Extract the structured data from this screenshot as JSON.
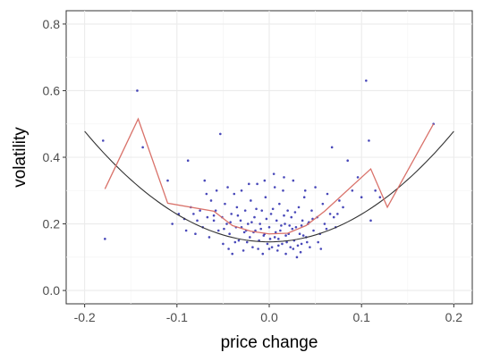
{
  "chart_data": {
    "type": "scatter",
    "xlabel": "price change",
    "ylabel": "volatility",
    "xlim": [
      -0.22,
      0.22
    ],
    "ylim": [
      -0.04,
      0.84
    ],
    "x_ticks": [
      -0.2,
      -0.1,
      0.0,
      0.1,
      0.2
    ],
    "x_tick_labels": [
      "-0.2",
      "-0.1",
      "0.0",
      "0.1",
      "0.2"
    ],
    "y_ticks": [
      0.0,
      0.2,
      0.4,
      0.6,
      0.8
    ],
    "y_tick_labels": [
      "0.0",
      "0.2",
      "0.4",
      "0.6",
      "0.8"
    ],
    "grid": true,
    "colors": {
      "points": "#1a1aa8",
      "empirical_line": "#d9726a",
      "fit_curve": "#333333"
    },
    "series": [
      {
        "kind": "scatter",
        "points": [
          [
            -0.18,
            0.45
          ],
          [
            -0.178,
            0.155
          ],
          [
            -0.143,
            0.6
          ],
          [
            -0.137,
            0.43
          ],
          [
            -0.11,
            0.33
          ],
          [
            -0.105,
            0.2
          ],
          [
            -0.098,
            0.23
          ],
          [
            -0.092,
            0.215
          ],
          [
            -0.09,
            0.18
          ],
          [
            -0.088,
            0.39
          ],
          [
            -0.085,
            0.25
          ],
          [
            -0.082,
            0.23
          ],
          [
            -0.078,
            0.21
          ],
          [
            -0.075,
            0.24
          ],
          [
            -0.072,
            0.19
          ],
          [
            -0.07,
            0.33
          ],
          [
            -0.068,
            0.29
          ],
          [
            -0.065,
            0.16
          ],
          [
            -0.063,
            0.27
          ],
          [
            -0.06,
            0.21
          ],
          [
            -0.058,
            0.24
          ],
          [
            -0.055,
            0.18
          ],
          [
            -0.053,
            0.47
          ],
          [
            -0.051,
            0.22
          ],
          [
            -0.05,
            0.14
          ],
          [
            -0.048,
            0.26
          ],
          [
            -0.046,
            0.2
          ],
          [
            -0.045,
            0.31
          ],
          [
            -0.043,
            0.17
          ],
          [
            -0.041,
            0.23
          ],
          [
            -0.04,
            0.11
          ],
          [
            -0.038,
            0.29
          ],
          [
            -0.036,
            0.19
          ],
          [
            -0.035,
            0.25
          ],
          [
            -0.033,
            0.15
          ],
          [
            -0.031,
            0.21
          ],
          [
            -0.03,
            0.3
          ],
          [
            -0.028,
            0.12
          ],
          [
            -0.026,
            0.24
          ],
          [
            -0.025,
            0.18
          ],
          [
            -0.023,
            0.2
          ],
          [
            -0.021,
            0.16
          ],
          [
            -0.02,
            0.27
          ],
          [
            -0.018,
            0.13
          ],
          [
            -0.016,
            0.22
          ],
          [
            -0.015,
            0.18
          ],
          [
            -0.013,
            0.32
          ],
          [
            -0.011,
            0.15
          ],
          [
            -0.01,
            0.2
          ],
          [
            -0.008,
            0.24
          ],
          [
            -0.007,
            0.11
          ],
          [
            -0.005,
            0.17
          ],
          [
            -0.004,
            0.28
          ],
          [
            -0.002,
            0.14
          ],
          [
            0.0,
            0.19
          ],
          [
            0.002,
            0.23
          ],
          [
            0.003,
            0.13
          ],
          [
            0.005,
            0.35
          ],
          [
            0.006,
            0.16
          ],
          [
            0.008,
            0.21
          ],
          [
            0.009,
            0.12
          ],
          [
            0.011,
            0.26
          ],
          [
            0.012,
            0.18
          ],
          [
            0.014,
            0.14
          ],
          [
            0.015,
            0.3
          ],
          [
            0.017,
            0.2
          ],
          [
            0.018,
            0.11
          ],
          [
            0.02,
            0.24
          ],
          [
            0.021,
            0.17
          ],
          [
            0.023,
            0.13
          ],
          [
            0.024,
            0.22
          ],
          [
            0.026,
            0.33
          ],
          [
            0.027,
            0.15
          ],
          [
            0.029,
            0.19
          ],
          [
            0.03,
            0.1
          ],
          [
            0.032,
            0.25
          ],
          [
            0.033,
            0.17
          ],
          [
            0.035,
            0.14
          ],
          [
            0.036,
            0.21
          ],
          [
            0.038,
            0.28
          ],
          [
            0.04,
            0.16
          ],
          [
            0.042,
            0.2
          ],
          [
            0.044,
            0.13
          ],
          [
            0.046,
            0.24
          ],
          [
            0.048,
            0.18
          ],
          [
            0.05,
            0.31
          ],
          [
            0.052,
            0.22
          ],
          [
            0.055,
            0.17
          ],
          [
            0.058,
            0.26
          ],
          [
            0.06,
            0.2
          ],
          [
            0.063,
            0.29
          ],
          [
            0.066,
            0.23
          ],
          [
            0.068,
            0.43
          ],
          [
            0.072,
            0.19
          ],
          [
            0.076,
            0.27
          ],
          [
            0.08,
            0.25
          ],
          [
            0.085,
            0.39
          ],
          [
            0.09,
            0.3
          ],
          [
            0.096,
            0.34
          ],
          [
            0.1,
            0.28
          ],
          [
            0.105,
            0.63
          ],
          [
            0.108,
            0.45
          ],
          [
            0.11,
            0.21
          ],
          [
            0.115,
            0.3
          ],
          [
            0.12,
            0.28
          ],
          [
            0.178,
            0.5
          ],
          [
            -0.06,
            0.225
          ],
          [
            -0.042,
            0.205
          ],
          [
            -0.037,
            0.145
          ],
          [
            -0.027,
            0.175
          ],
          [
            -0.019,
            0.205
          ],
          [
            -0.012,
            0.125
          ],
          [
            -0.003,
            0.215
          ],
          [
            0.001,
            0.155
          ],
          [
            0.007,
            0.175
          ],
          [
            0.013,
            0.195
          ],
          [
            0.019,
            0.145
          ],
          [
            0.025,
            0.185
          ],
          [
            0.031,
            0.135
          ],
          [
            0.037,
            0.165
          ],
          [
            0.043,
            0.205
          ],
          [
            -0.049,
            0.185
          ],
          [
            -0.034,
            0.225
          ],
          [
            -0.024,
            0.145
          ],
          [
            -0.014,
            0.245
          ],
          [
            -0.006,
            0.165
          ],
          [
            0.004,
            0.245
          ],
          [
            0.01,
            0.135
          ],
          [
            0.016,
            0.225
          ],
          [
            0.022,
            0.195
          ],
          [
            0.028,
            0.235
          ],
          [
            0.034,
            0.115
          ],
          [
            0.041,
            0.145
          ],
          [
            0.047,
            0.215
          ],
          [
            0.053,
            0.145
          ],
          [
            0.062,
            0.185
          ],
          [
            -0.03,
            0.19
          ],
          [
            -0.017,
            0.175
          ],
          [
            -0.009,
            0.185
          ],
          [
            0.0,
            0.125
          ],
          [
            0.01,
            0.155
          ],
          [
            0.018,
            0.165
          ],
          [
            0.026,
            0.125
          ],
          [
            0.035,
            0.195
          ],
          [
            -0.044,
            0.125
          ],
          [
            0.056,
            0.125
          ],
          [
            -0.057,
            0.3
          ],
          [
            -0.067,
            0.22
          ],
          [
            0.07,
            0.22
          ],
          [
            0.074,
            0.23
          ],
          [
            -0.08,
            0.17
          ],
          [
            -0.022,
            0.32
          ],
          [
            0.006,
            0.31
          ],
          [
            0.016,
            0.34
          ],
          [
            -0.005,
            0.33
          ],
          [
            0.039,
            0.3
          ]
        ]
      },
      {
        "kind": "line",
        "points": [
          [
            -0.178,
            0.305
          ],
          [
            -0.142,
            0.515
          ],
          [
            -0.11,
            0.262
          ],
          [
            -0.06,
            0.238
          ],
          [
            -0.04,
            0.195
          ],
          [
            -0.02,
            0.178
          ],
          [
            0.0,
            0.17
          ],
          [
            0.02,
            0.172
          ],
          [
            0.04,
            0.195
          ],
          [
            0.06,
            0.238
          ],
          [
            0.11,
            0.365
          ],
          [
            0.128,
            0.25
          ],
          [
            0.178,
            0.5
          ]
        ]
      },
      {
        "kind": "curve",
        "fit": {
          "a": 0.146,
          "b": 0.17,
          "c": 8.3
        },
        "x_range": [
          -0.2,
          0.2
        ]
      }
    ]
  }
}
